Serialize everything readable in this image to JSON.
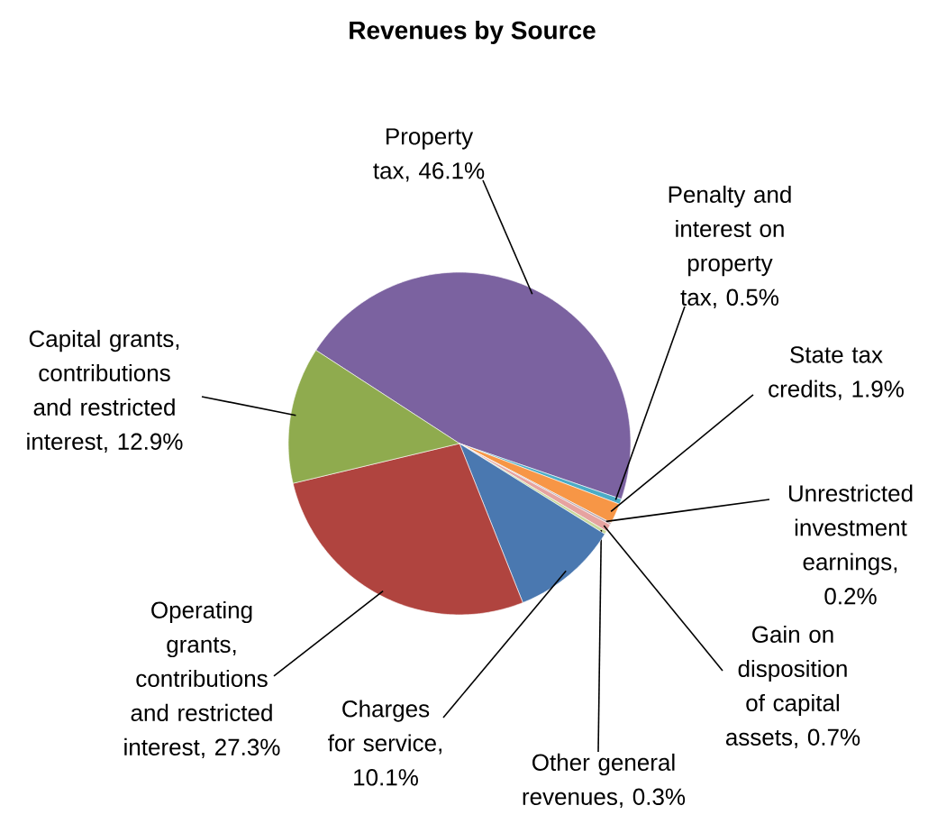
{
  "chart_data": {
    "type": "pie",
    "title": "Revenues by Source",
    "categories": [
      "Property tax, 46.1%",
      "Penalty and interest on property tax, 0.5%",
      "State tax credits, 1.9%",
      "Unrestricted investment earnings, 0.2%",
      "Gain on disposition of capital assets, 0.7%",
      "Other general revenues, 0.3%",
      "Charges for service, 10.1%",
      "Operating grants, contributions and restricted interest, 27.3%",
      "Capital grants, contributions and restricted interest, 12.9%"
    ],
    "values": [
      46.1,
      0.5,
      1.9,
      0.2,
      0.7,
      0.3,
      10.1,
      27.3,
      12.9
    ],
    "colors": [
      "#7b62a0",
      "#4bacc6",
      "#f79646",
      "#b7a9b0",
      "#e6a3a0",
      "#c8d89a",
      "#4a78b0",
      "#b0443f",
      "#8fab4e"
    ]
  }
}
